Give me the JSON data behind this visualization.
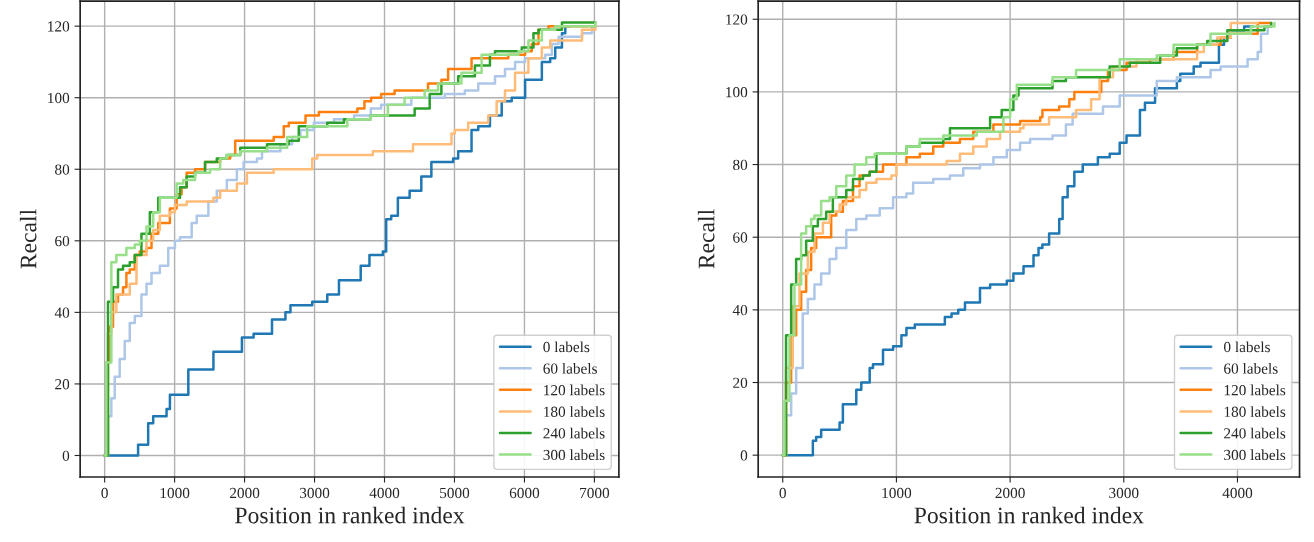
{
  "chart_data": [
    {
      "type": "step",
      "xlabel": "Position in ranked index",
      "ylabel": "Recall",
      "xlim": [
        -350,
        7350
      ],
      "ylim": [
        -6,
        127
      ],
      "xticks": [
        0,
        1000,
        2000,
        3000,
        4000,
        5000,
        6000,
        7000
      ],
      "yticks": [
        0,
        20,
        40,
        60,
        80,
        100,
        120
      ],
      "grid": true,
      "legend": "bottom right",
      "line_style": "solid",
      "marker": "none",
      "series": [
        {
          "name": "0 labels",
          "color": "#1f77b4",
          "x": [
            0,
            478,
            622,
            694,
            885,
            933,
            1196,
            1555,
            1962,
            2129,
            2392,
            2584,
            2656,
            2967,
            3182,
            3349,
            3660,
            3785,
            3976,
            4024,
            4096,
            4191,
            4359,
            4526,
            4670,
            4981,
            5053,
            5244,
            5340,
            5507,
            5675,
            5818,
            6010,
            6249,
            6368,
            6440,
            6536,
            6584,
            6650
          ],
          "values": [
            0,
            3,
            9,
            11,
            13,
            17,
            24,
            29,
            33,
            34,
            38,
            40,
            42,
            43,
            45,
            49,
            53,
            56,
            57,
            66,
            67,
            72,
            74,
            78,
            82,
            83,
            85,
            91,
            92,
            95,
            99,
            100,
            105,
            110,
            111,
            114,
            118,
            120,
            120
          ]
        },
        {
          "name": "60 labels",
          "color": "#aec7e8",
          "x": [
            0,
            48,
            96,
            144,
            215,
            287,
            359,
            431,
            526,
            598,
            670,
            789,
            909,
            1005,
            1077,
            1244,
            1316,
            1483,
            1603,
            1746,
            1890,
            1986,
            2177,
            2249,
            2512,
            2679,
            2799,
            2990,
            3278,
            3565,
            3804,
            3952,
            4383,
            4861,
            5148,
            5340,
            5579,
            5722,
            5866,
            6010,
            6297,
            6392,
            6488,
            6823,
            6967
          ],
          "values": [
            0,
            11,
            16,
            22,
            27,
            32,
            37,
            39,
            45,
            48,
            51,
            53,
            58,
            60,
            61,
            65,
            67,
            71,
            74,
            77,
            80,
            82,
            83,
            85,
            87,
            89,
            91,
            93,
            94,
            95,
            97,
            98,
            100,
            101,
            102,
            104,
            106,
            108,
            110,
            111,
            112,
            115,
            117,
            118,
            120
          ]
        },
        {
          "name": "120 labels",
          "color": "#ff7f0e",
          "x": [
            0,
            24,
            72,
            120,
            191,
            263,
            311,
            359,
            431,
            502,
            598,
            670,
            766,
            933,
            1029,
            1100,
            1172,
            1292,
            1435,
            1651,
            1794,
            1866,
            2010,
            2416,
            2560,
            2632,
            2871,
            3062,
            3612,
            3713,
            3809,
            3952,
            4144,
            4622,
            4813,
            4909,
            5100,
            5244,
            5770,
            6010,
            6105,
            6201,
            6344,
            7014
          ],
          "values": [
            0,
            26,
            36,
            43,
            45,
            47,
            51,
            52,
            56,
            57,
            58,
            62,
            65,
            69,
            73,
            75,
            79,
            80,
            82,
            83,
            84,
            88,
            88,
            89,
            92,
            93,
            95,
            96,
            97,
            99,
            100,
            101,
            102,
            104,
            105,
            108,
            108,
            111,
            112,
            113,
            115,
            119,
            120,
            120
          ]
        },
        {
          "name": "180 labels",
          "color": "#ffbb78",
          "x": [
            0,
            48,
            96,
            167,
            359,
            455,
            598,
            694,
            789,
            933,
            1005,
            1172,
            1555,
            1651,
            1890,
            2033,
            2416,
            2703,
            2967,
            3038,
            3833,
            4407,
            4957,
            5005,
            5196,
            5483,
            5603,
            5722,
            5866,
            6057,
            6249,
            6368,
            6823,
            7014
          ],
          "values": [
            0,
            34,
            40,
            45,
            48,
            56,
            60,
            63,
            67,
            68,
            70,
            71,
            72,
            74,
            76,
            79,
            80,
            80,
            83,
            84,
            85,
            87,
            90,
            91,
            93,
            95,
            99,
            102,
            107,
            111,
            114,
            116,
            119,
            120
          ]
        },
        {
          "name": "240 labels",
          "color": "#2ca02c",
          "x": [
            0,
            48,
            120,
            191,
            263,
            359,
            431,
            526,
            646,
            766,
            1077,
            1172,
            1292,
            1435,
            1603,
            1746,
            1938,
            2321,
            2632,
            2775,
            3182,
            3421,
            3804,
            4144,
            4431,
            4646,
            4813,
            5053,
            5292,
            5507,
            5579,
            5962,
            6129,
            6201,
            6536,
            7014
          ],
          "values": [
            0,
            43,
            47,
            52,
            53,
            54,
            56,
            62,
            68,
            72,
            75,
            78,
            79,
            82,
            83,
            84,
            86,
            87,
            88,
            92,
            93,
            94,
            95,
            95,
            97,
            101,
            104,
            106,
            109,
            112,
            113,
            114,
            118,
            119,
            121,
            121
          ]
        },
        {
          "name": "300 labels",
          "color": "#98df8a",
          "x": [
            0,
            24,
            96,
            167,
            311,
            431,
            502,
            598,
            694,
            789,
            1029,
            1124,
            1292,
            1507,
            1651,
            1746,
            1938,
            2321,
            2608,
            2895,
            3469,
            3804,
            4048,
            4287,
            4574,
            4766,
            5100,
            5388,
            5914,
            6057,
            6249,
            6440,
            7014
          ],
          "values": [
            0,
            26,
            54,
            56,
            58,
            59,
            60,
            64,
            68,
            72,
            76,
            77,
            79,
            80,
            83,
            84,
            85,
            86,
            89,
            92,
            94,
            95,
            98,
            100,
            102,
            104,
            107,
            112,
            113,
            116,
            119,
            120,
            121
          ]
        }
      ]
    },
    {
      "type": "step",
      "xlabel": "Position in ranked index",
      "ylabel": "Recall",
      "xlim": [
        -216,
        4546
      ],
      "ylim": [
        -6,
        125
      ],
      "xticks": [
        0,
        1000,
        2000,
        3000,
        4000
      ],
      "yticks": [
        0,
        20,
        40,
        60,
        80,
        100,
        120
      ],
      "grid": true,
      "legend": "bottom right",
      "line_style": "solid",
      "marker": "none",
      "series": [
        {
          "name": "0 labels",
          "color": "#1f77b4",
          "x": [
            0,
            265,
            294,
            338,
            500,
            529,
            647,
            691,
            765,
            794,
            882,
            971,
            1044,
            1088,
            1162,
            1426,
            1485,
            1544,
            1603,
            1735,
            1824,
            1971,
            2029,
            2118,
            2206,
            2250,
            2284,
            2343,
            2432,
            2462,
            2506,
            2565,
            2639,
            2772,
            2876,
            2964,
            3024,
            3142,
            3186,
            3275,
            3305,
            3467,
            3497,
            3615,
            3675,
            3837,
            3882,
            3941,
            4059,
            4133
          ],
          "values": [
            0,
            4,
            5,
            7,
            9,
            14,
            18,
            20,
            24,
            25,
            29,
            30,
            33,
            35,
            36,
            38,
            39,
            40,
            42,
            46,
            47,
            48,
            50,
            52,
            55,
            57,
            58,
            61,
            65,
            71,
            74,
            78,
            80,
            82,
            83,
            86,
            88,
            95,
            97,
            101,
            101,
            103,
            105,
            107,
            108,
            113,
            115,
            117,
            118,
            118
          ]
        },
        {
          "name": "60 labels",
          "color": "#aec7e8",
          "x": [
            0,
            29,
            74,
            118,
            176,
            221,
            279,
            338,
            412,
            471,
            559,
            647,
            735,
            853,
            971,
            1088,
            1147,
            1324,
            1471,
            1588,
            1735,
            1853,
            1971,
            2088,
            2176,
            2373,
            2491,
            2550,
            2817,
            2964,
            3290,
            3467,
            3763,
            3852,
            4089,
            4178,
            4207,
            4266,
            4296
          ],
          "values": [
            0,
            11,
            17,
            24,
            39,
            43,
            47,
            50,
            54,
            57,
            62,
            65,
            66,
            68,
            71,
            72,
            75,
            76,
            77,
            79,
            80,
            82,
            84,
            86,
            87,
            88,
            91,
            94,
            96,
            99,
            103,
            104,
            106,
            107,
            109,
            111,
            116,
            118,
            119
          ]
        },
        {
          "name": "120 labels",
          "color": "#ff7f0e",
          "x": [
            0,
            29,
            74,
            118,
            162,
            206,
            250,
            294,
            426,
            471,
            529,
            618,
            676,
            765,
            882,
            1088,
            1206,
            1324,
            1412,
            1559,
            1676,
            1853,
            2088,
            2176,
            2265,
            2284,
            2432,
            2521,
            2565,
            2802,
            2861,
            3024,
            3231,
            3438,
            3645,
            3852,
            3941,
            4178,
            4296
          ],
          "values": [
            0,
            20,
            33,
            40,
            45,
            51,
            57,
            60,
            66,
            67,
            70,
            74,
            77,
            78,
            80,
            82,
            83,
            85,
            86,
            87,
            89,
            91,
            92,
            92,
            93,
            95,
            96,
            98,
            100,
            103,
            106,
            108,
            109,
            111,
            113,
            115,
            116,
            119,
            119
          ]
        },
        {
          "name": "180 labels",
          "color": "#ffbb78",
          "x": [
            0,
            29,
            88,
            147,
            221,
            279,
            353,
            412,
            500,
            559,
            676,
            735,
            824,
            956,
            1000,
            1324,
            1441,
            1559,
            1676,
            1794,
            1912,
            2088,
            2118,
            2343,
            2580,
            2713,
            2787,
            2905,
            3112,
            3645,
            3704,
            3822,
            3941,
            4178
          ],
          "values": [
            0,
            24,
            41,
            50,
            56,
            61,
            64,
            67,
            69,
            71,
            73,
            75,
            76,
            77,
            80,
            80,
            81,
            83,
            85,
            87,
            89,
            90,
            91,
            93,
            95,
            98,
            104,
            107,
            109,
            111,
            113,
            115,
            119,
            119
          ]
        },
        {
          "name": "240 labels",
          "color": "#2ca02c",
          "x": [
            0,
            29,
            74,
            118,
            162,
            206,
            265,
            309,
            382,
            441,
            559,
            618,
            706,
            765,
            824,
            1088,
            1206,
            1412,
            1471,
            1824,
            1926,
            2029,
            2074,
            2373,
            2491,
            2876,
            3053,
            3320,
            3467,
            3645,
            3734,
            3911,
            4237,
            4296
          ],
          "values": [
            0,
            33,
            47,
            54,
            55,
            59,
            63,
            65,
            67,
            71,
            73,
            76,
            77,
            78,
            83,
            85,
            86,
            87,
            90,
            93,
            95,
            99,
            101,
            103,
            104,
            107,
            108,
            110,
            112,
            113,
            114,
            117,
            118,
            119
          ]
        },
        {
          "name": "300 labels",
          "color": "#98df8a",
          "x": [
            0,
            15,
            59,
            103,
            162,
            206,
            250,
            279,
            338,
            412,
            471,
            559,
            632,
            735,
            809,
            1088,
            1206,
            1412,
            1706,
            1941,
            2000,
            2059,
            2373,
            2580,
            2964,
            3290,
            3438,
            3763,
            4118,
            4325
          ],
          "values": [
            0,
            15,
            33,
            47,
            61,
            63,
            65,
            66,
            70,
            71,
            74,
            77,
            80,
            82,
            83,
            85,
            87,
            88,
            89,
            93,
            98,
            102,
            104,
            106,
            109,
            110,
            113,
            116,
            118,
            119
          ]
        }
      ]
    }
  ]
}
